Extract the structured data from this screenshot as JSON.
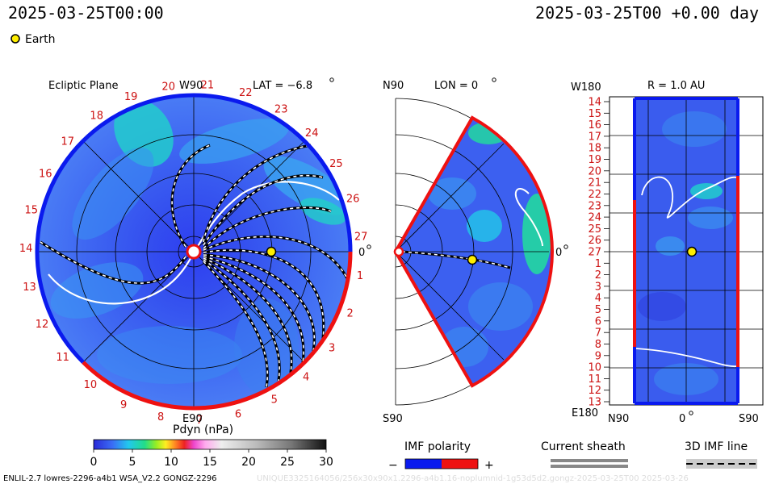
{
  "header": {
    "left_time": "2025-03-25T00:00",
    "right_time": "2025-03-25T00 +0.00 day",
    "legend_earth": "Earth"
  },
  "ecliptic": {
    "title": "Ecliptic Plane",
    "lat_label": "LAT = −6.8",
    "top_label": "W90",
    "right_label": "0",
    "bottom_label": "E90",
    "ticks": [
      "1",
      "2",
      "3",
      "4",
      "5",
      "6",
      "7",
      "8",
      "9",
      "10",
      "11",
      "12",
      "13",
      "14",
      "15",
      "16",
      "17",
      "18",
      "19",
      "20",
      "21",
      "22",
      "23",
      "24",
      "25",
      "26",
      "27"
    ]
  },
  "meridional": {
    "top_label": "N90",
    "lon_label": "LON = 0",
    "bottom_label": "S90",
    "right_label": "0"
  },
  "radial": {
    "r_label": "R = 1.0 AU",
    "top_left": "W180",
    "bottom_left": "E180",
    "bottom_labels": [
      "N90",
      "0",
      "S90"
    ],
    "rows": [
      "14",
      "15",
      "16",
      "17",
      "18",
      "19",
      "20",
      "21",
      "22",
      "23",
      "24",
      "25",
      "26",
      "27",
      "1",
      "2",
      "3",
      "4",
      "5",
      "6",
      "7",
      "8",
      "9",
      "10",
      "11",
      "12",
      "13"
    ]
  },
  "colorbar": {
    "title": "Pdyn (nPa)",
    "ticks": [
      "0",
      "5",
      "10",
      "15",
      "20",
      "25",
      "30"
    ]
  },
  "imf_polarity": {
    "title": "IMF polarity",
    "minus": "−",
    "plus": "+"
  },
  "current_sheath": {
    "title": "Current sheath"
  },
  "imf_line": {
    "title": "3D IMF line"
  },
  "footer": {
    "left": "ENLIL-2.7 lowres-2296-a4b1 WSA_V2.2 GONGZ-2296",
    "right": "UNIQUE3325164056/256x30x90x1.2296-a4b1.16-noplumnid-1g53d5d2.gongz-2025-03-25T00  2025-03-26"
  },
  "colors": {
    "background_blue": "#3c5cf0",
    "positive_polarity": "#ee1111",
    "negative_polarity": "#0a1aee",
    "earth": "#ffee00"
  }
}
